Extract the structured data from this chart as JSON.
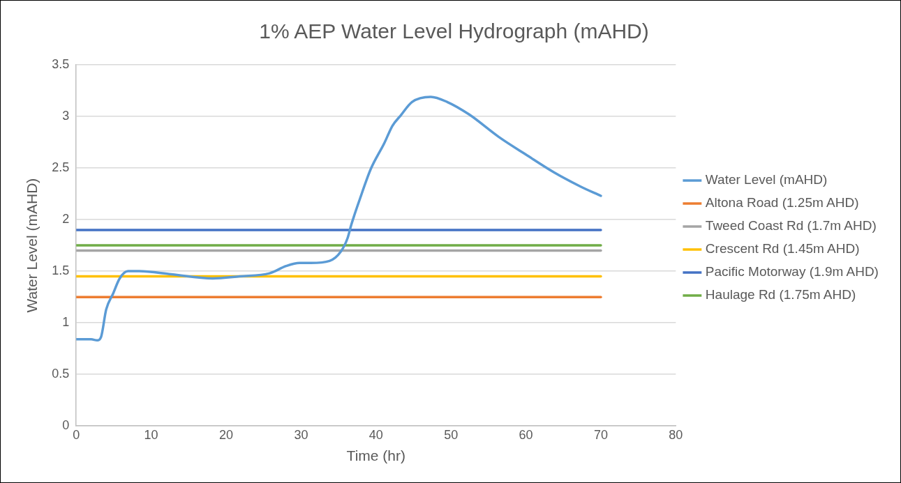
{
  "chart_data": {
    "type": "line",
    "title": "1% AEP Water Level Hydrograph (mAHD)",
    "xlabel": "Time (hr)",
    "ylabel": "Water Level (mAHD)",
    "xlim": [
      0,
      80
    ],
    "xticks": [
      0,
      10,
      20,
      30,
      40,
      50,
      60,
      70,
      80
    ],
    "ylim": [
      0,
      3.5
    ],
    "yticks": [
      0,
      0.5,
      1,
      1.5,
      2,
      2.5,
      3,
      3.5
    ],
    "grid": "y",
    "legend": "right",
    "marker": "none",
    "line_style": "solid",
    "series": [
      {
        "name": "Water Level (mAHD)",
        "color": "#5b9bd5",
        "x": [
          0,
          2,
          2.8,
          3.3,
          4,
          4.9,
          5.8,
          6.9,
          8.4,
          12.7,
          18.2,
          21.8,
          25.8,
          28,
          29.8,
          31.3,
          33.8,
          35.3,
          36.2,
          36.7,
          37.8,
          39.3,
          41.1,
          42.2,
          43.3,
          44.8,
          47.3,
          49.5,
          52.4,
          56.4,
          60,
          63.7,
          67.3,
          70
        ],
        "values": [
          0.84,
          0.84,
          0.83,
          0.86,
          1.13,
          1.28,
          1.43,
          1.5,
          1.5,
          1.47,
          1.43,
          1.45,
          1.48,
          1.55,
          1.58,
          1.58,
          1.6,
          1.69,
          1.82,
          1.95,
          2.19,
          2.49,
          2.74,
          2.91,
          3.01,
          3.14,
          3.19,
          3.14,
          3.02,
          2.8,
          2.63,
          2.46,
          2.32,
          2.23
        ]
      },
      {
        "name": "Altona Road (1.25m AHD)",
        "color": "#ed7d31",
        "x": [
          0,
          70
        ],
        "values": [
          1.25,
          1.25
        ]
      },
      {
        "name": "Tweed Coast Rd (1.7m AHD)",
        "color": "#a5a5a5",
        "x": [
          0,
          70
        ],
        "values": [
          1.7,
          1.7
        ]
      },
      {
        "name": "Crescent Rd (1.45m AHD)",
        "color": "#ffc000",
        "x": [
          0,
          70
        ],
        "values": [
          1.45,
          1.45
        ]
      },
      {
        "name": "Pacific Motorway (1.9m AHD)",
        "color": "#4472c4",
        "x": [
          0,
          70
        ],
        "values": [
          1.9,
          1.9
        ]
      },
      {
        "name": "Haulage Rd (1.75m AHD)",
        "color": "#70ad47",
        "x": [
          0,
          70
        ],
        "values": [
          1.75,
          1.75
        ]
      }
    ]
  }
}
